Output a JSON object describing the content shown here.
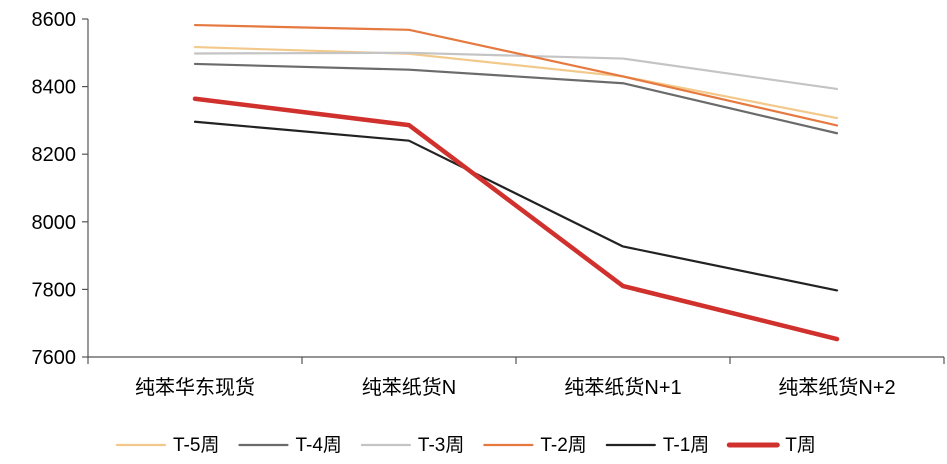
{
  "chart_data": {
    "type": "line",
    "title": "",
    "xlabel": "",
    "ylabel": "",
    "categories": [
      "纯苯华东现货",
      "纯苯纸货N",
      "纯苯纸货N+1",
      "纯苯纸货N+2"
    ],
    "ylim": [
      7600,
      8600
    ],
    "yticks": [
      7600,
      7800,
      8000,
      8200,
      8400,
      8600
    ],
    "grid": false,
    "legend_position": "bottom",
    "series": [
      {
        "name": "T-5周",
        "color": "#F2C98A",
        "values": [
          8517,
          8497,
          8430,
          8307
        ]
      },
      {
        "name": "T-4周",
        "color": "#6B6B6B",
        "values": [
          8467,
          8450,
          8410,
          8262
        ]
      },
      {
        "name": "T-3周",
        "color": "#C4C4C4",
        "values": [
          8498,
          8500,
          8483,
          8393
        ]
      },
      {
        "name": "T-2周",
        "color": "#E5793F",
        "values": [
          8582,
          8568,
          8430,
          8285
        ]
      },
      {
        "name": "T-1周",
        "color": "#222222",
        "values": [
          8296,
          8240,
          7927,
          7797
        ]
      },
      {
        "name": "T周",
        "color": "#D0312D",
        "values": [
          8364,
          8286,
          7810,
          7653
        ]
      }
    ]
  }
}
